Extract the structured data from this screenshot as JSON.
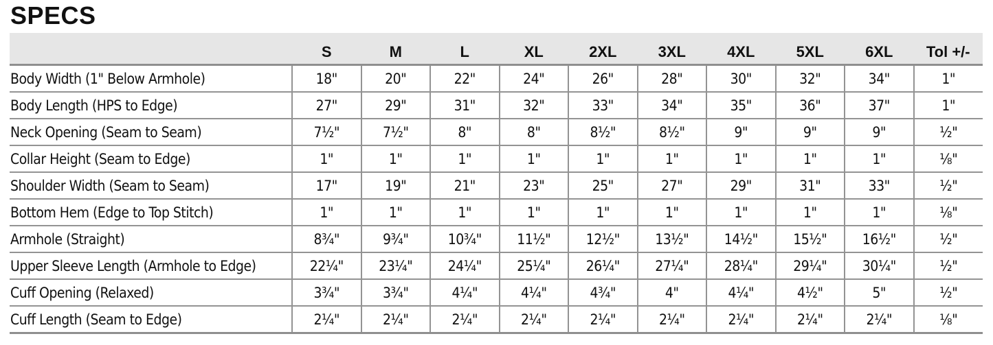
{
  "title": "SPECS",
  "columns": [
    "",
    "S",
    "M",
    "L",
    "XL",
    "2XL",
    "3XL",
    "4XL",
    "5XL",
    "6XL",
    "Tol +/-"
  ],
  "rows": [
    {
      "label": "Body Width (1\" Below Armhole)",
      "values": [
        "18\"",
        "20\"",
        "22\"",
        "24\"",
        "26\"",
        "28\"",
        "30\"",
        "32\"",
        "34\"",
        "1\""
      ]
    },
    {
      "label": "Body Length (HPS to Edge)",
      "values": [
        "27\"",
        "29\"",
        "31\"",
        "32\"",
        "33\"",
        "34\"",
        "35\"",
        "36\"",
        "37\"",
        "1\""
      ]
    },
    {
      "label": "Neck Opening (Seam to Seam)",
      "values": [
        "7½\"",
        "7½\"",
        "8\"",
        "8\"",
        "8½\"",
        "8½\"",
        "9\"",
        "9\"",
        "9\"",
        "½\""
      ]
    },
    {
      "label": "Collar Height (Seam to Edge)",
      "values": [
        "1\"",
        "1\"",
        "1\"",
        "1\"",
        "1\"",
        "1\"",
        "1\"",
        "1\"",
        "1\"",
        "⅛\""
      ]
    },
    {
      "label": "Shoulder Width (Seam to Seam)",
      "values": [
        "17\"",
        "19\"",
        "21\"",
        "23\"",
        "25\"",
        "27\"",
        "29\"",
        "31\"",
        "33\"",
        "½\""
      ]
    },
    {
      "label": "Bottom Hem (Edge to Top Stitch)",
      "values": [
        "1\"",
        "1\"",
        "1\"",
        "1\"",
        "1\"",
        "1\"",
        "1\"",
        "1\"",
        "1\"",
        "⅛\""
      ]
    },
    {
      "label": "Armhole (Straight)",
      "values": [
        "8¾\"",
        "9¾\"",
        "10¾\"",
        "11½\"",
        "12½\"",
        "13½\"",
        "14½\"",
        "15½\"",
        "16½\"",
        "½\""
      ]
    },
    {
      "label": "Upper Sleeve Length (Armhole to Edge)",
      "values": [
        "22¼\"",
        "23¼\"",
        "24¼\"",
        "25¼\"",
        "26¼\"",
        "27¼\"",
        "28¼\"",
        "29¼\"",
        "30¼\"",
        "½\""
      ]
    },
    {
      "label": "Cuff Opening (Relaxed)",
      "values": [
        "3¾\"",
        "3¾\"",
        "4¼\"",
        "4¼\"",
        "4¾\"",
        "4\"",
        "4¼\"",
        "4½\"",
        "5\"",
        "½\""
      ]
    },
    {
      "label": "Cuff Length (Seam to Edge)",
      "values": [
        "2¼\"",
        "2¼\"",
        "2¼\"",
        "2¼\"",
        "2¼\"",
        "2¼\"",
        "2¼\"",
        "2¼\"",
        "2¼\"",
        "⅛\""
      ]
    }
  ]
}
